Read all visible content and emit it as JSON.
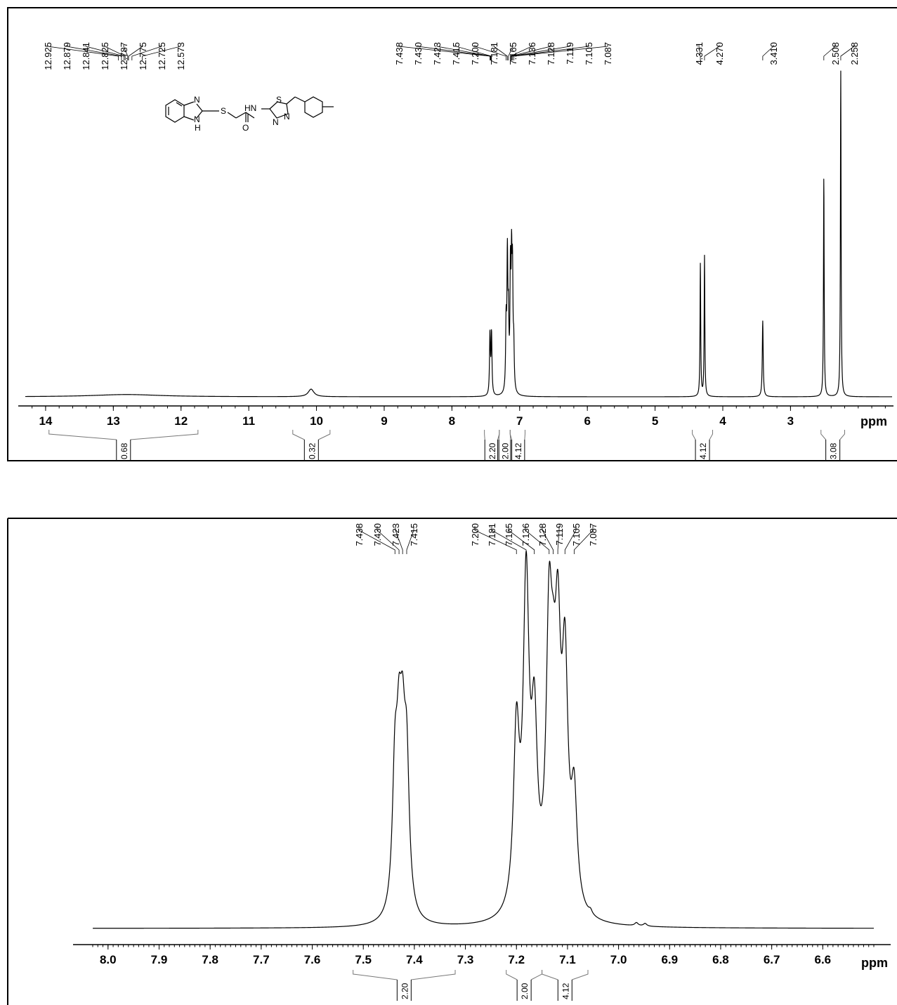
{
  "chart_data": [
    {
      "type": "line",
      "title": "",
      "xlabel": "ppm",
      "ylabel": "",
      "x_reversed": true,
      "xlim": [
        14.3,
        1.5
      ],
      "ticks": [
        "14",
        "13",
        "12",
        "11",
        "10",
        "9",
        "8",
        "7",
        "6",
        "5",
        "4",
        "3"
      ],
      "peaks": [
        {
          "x": 12.8,
          "h": 0.006,
          "w": 0.6
        },
        {
          "x": 10.08,
          "h": 0.02,
          "w": 0.05
        },
        {
          "x": 7.438,
          "h": 0.16,
          "w": 0.008
        },
        {
          "x": 7.415,
          "h": 0.16,
          "w": 0.008
        },
        {
          "x": 7.2,
          "h": 0.17,
          "w": 0.008
        },
        {
          "x": 7.181,
          "h": 0.34,
          "w": 0.008
        },
        {
          "x": 7.165,
          "h": 0.17,
          "w": 0.008
        },
        {
          "x": 7.136,
          "h": 0.3,
          "w": 0.008
        },
        {
          "x": 7.119,
          "h": 0.3,
          "w": 0.008
        },
        {
          "x": 7.105,
          "h": 0.28,
          "w": 0.008
        },
        {
          "x": 7.087,
          "h": 0.11,
          "w": 0.008
        },
        {
          "x": 4.331,
          "h": 0.35,
          "w": 0.006
        },
        {
          "x": 4.27,
          "h": 0.37,
          "w": 0.006
        },
        {
          "x": 3.41,
          "h": 0.2,
          "w": 0.008
        },
        {
          "x": 2.508,
          "h": 0.58,
          "w": 0.006
        },
        {
          "x": 2.258,
          "h": 0.86,
          "w": 0.006
        }
      ],
      "peak_labels": [
        "12.925",
        "12.879",
        "12.841",
        "12.825",
        "12.787",
        "12.775",
        "12.725",
        "12.573",
        "7.438",
        "7.430",
        "7.423",
        "7.415",
        "7.200",
        "7.181",
        "7.165",
        "7.136",
        "7.128",
        "7.119",
        "7.105",
        "7.087",
        "4.331",
        "4.270",
        "3.410",
        "2.508",
        "2.258"
      ],
      "integrals": [
        {
          "from": 13.95,
          "to": 11.75,
          "value": "0.68"
        },
        {
          "from": 10.35,
          "to": 9.8,
          "value": "0.32"
        },
        {
          "from": 7.52,
          "to": 7.3,
          "value": "2.20"
        },
        {
          "from": 7.3,
          "to": 7.14,
          "value": "2.00"
        },
        {
          "from": 7.14,
          "to": 6.92,
          "value": "4.12"
        },
        {
          "from": 4.45,
          "to": 4.15,
          "value": "4.12"
        },
        {
          "from": 2.55,
          "to": 2.2,
          "value": "3.08"
        }
      ]
    },
    {
      "type": "line",
      "title": "",
      "xlabel": "ppm",
      "ylabel": "",
      "x_reversed": true,
      "xlim": [
        8.03,
        6.5
      ],
      "ticks": [
        "8.0",
        "7.9",
        "7.8",
        "7.7",
        "7.6",
        "7.5",
        "7.4",
        "7.3",
        "7.2",
        "7.1",
        "7.0",
        "6.9",
        "6.8",
        "6.7",
        "6.6"
      ],
      "peaks": [
        {
          "x": 7.438,
          "h": 0.34,
          "w": 0.006
        },
        {
          "x": 7.43,
          "h": 0.34,
          "w": 0.006
        },
        {
          "x": 7.423,
          "h": 0.34,
          "w": 0.006
        },
        {
          "x": 7.415,
          "h": 0.36,
          "w": 0.006
        },
        {
          "x": 7.2,
          "h": 0.45,
          "w": 0.007
        },
        {
          "x": 7.181,
          "h": 0.82,
          "w": 0.007
        },
        {
          "x": 7.165,
          "h": 0.43,
          "w": 0.007
        },
        {
          "x": 7.136,
          "h": 0.68,
          "w": 0.007
        },
        {
          "x": 7.128,
          "h": 0.25,
          "w": 0.006
        },
        {
          "x": 7.119,
          "h": 0.6,
          "w": 0.007
        },
        {
          "x": 7.105,
          "h": 0.58,
          "w": 0.007
        },
        {
          "x": 7.087,
          "h": 0.28,
          "w": 0.007
        },
        {
          "x": 7.055,
          "h": 0.01,
          "w": 0.004
        },
        {
          "x": 6.965,
          "h": 0.008,
          "w": 0.004
        },
        {
          "x": 6.948,
          "h": 0.007,
          "w": 0.004
        }
      ],
      "peak_labels": [
        "7.438",
        "7.430",
        "7.423",
        "7.415",
        "7.200",
        "7.181",
        "7.165",
        "7.136",
        "7.128",
        "7.119",
        "7.105",
        "7.087"
      ],
      "integrals": [
        {
          "from": 7.52,
          "to": 7.32,
          "value": "2.20"
        },
        {
          "from": 7.22,
          "to": 7.15,
          "value": "2.00"
        },
        {
          "from": 7.15,
          "to": 7.06,
          "value": "4.12"
        }
      ]
    }
  ],
  "structure_atoms": [
    "N",
    "N",
    "H",
    "S",
    "HN",
    "O",
    "S",
    "N",
    "N"
  ]
}
